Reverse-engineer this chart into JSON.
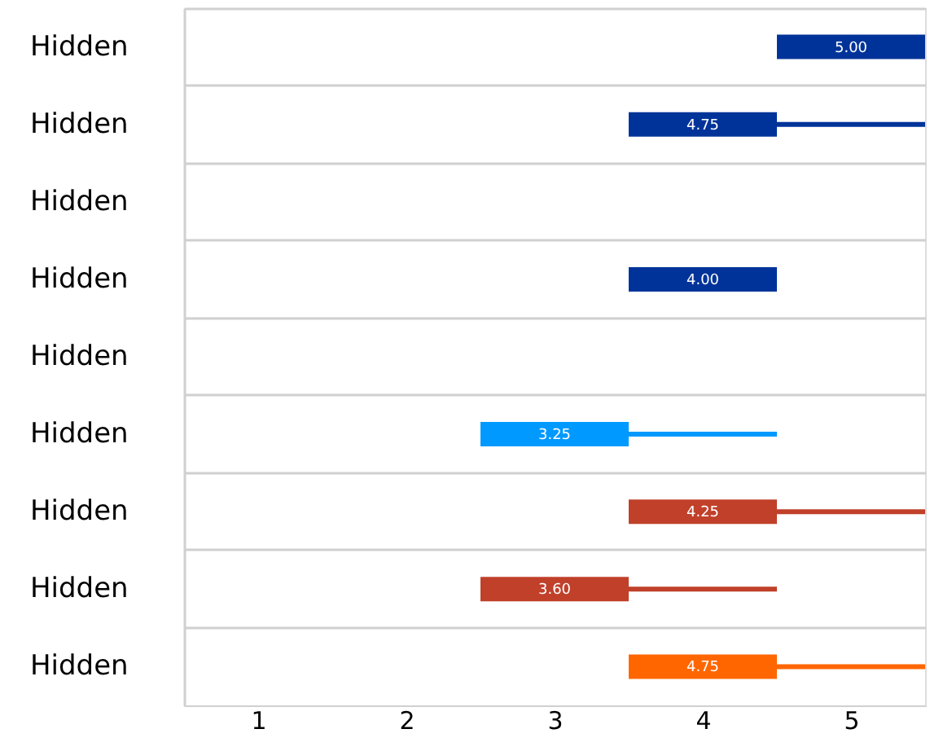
{
  "chart_data": {
    "type": "bar",
    "orientation": "horizontal",
    "categories": [
      "Hidden",
      "Hidden",
      "Hidden",
      "Hidden",
      "Hidden",
      "Hidden",
      "Hidden",
      "Hidden",
      "Hidden"
    ],
    "xlim": [
      0.5,
      5.5
    ],
    "xticks": [
      1,
      2,
      3,
      4,
      5
    ],
    "grid": "y",
    "series": [
      {
        "base": [
          4.5,
          3.5,
          null,
          3.5,
          null,
          2.5,
          3.5,
          2.5,
          3.5
        ],
        "values": [
          1,
          1,
          null,
          1,
          null,
          1,
          1,
          1,
          1
        ],
        "colors": [
          "#003399",
          "#003399",
          null,
          "#003399",
          null,
          "#0099ff",
          "#c0402a",
          "#c0402a",
          "#ff6600"
        ]
      },
      {
        "base": [
          null,
          4.5,
          null,
          null,
          null,
          3.5,
          4.5,
          3.5,
          4.5
        ],
        "values": [
          null,
          1,
          null,
          null,
          null,
          1,
          1,
          1,
          1
        ],
        "colors": [
          null,
          "#003399",
          null,
          null,
          null,
          "#0099ff",
          "#c0402a",
          "#c0402a",
          "#ff6600"
        ]
      }
    ],
    "annotations": [
      "5.00",
      "4.75",
      "4.00",
      "3.25",
      "4.25",
      "3.60",
      "4.75"
    ]
  }
}
